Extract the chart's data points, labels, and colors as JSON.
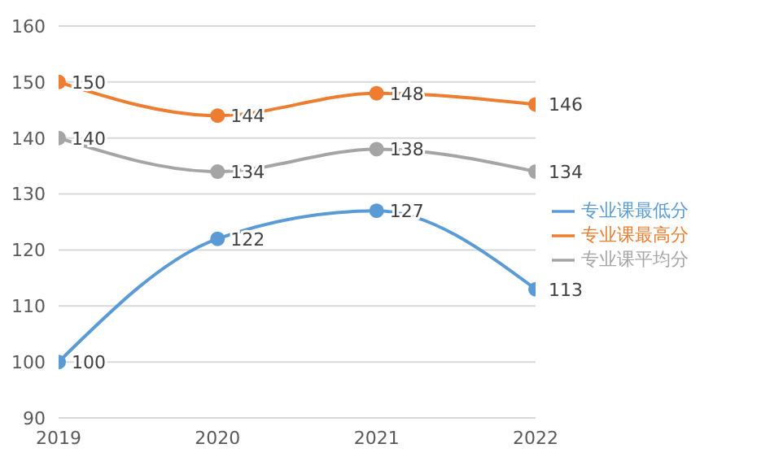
{
  "chart_data": {
    "type": "line",
    "categories": [
      "2019",
      "2020",
      "2021",
      "2022"
    ],
    "series": [
      {
        "name": "专业课最低分",
        "color": "#5b9bd5",
        "values": [
          100,
          122,
          127,
          113
        ]
      },
      {
        "name": "专业课最高分",
        "color": "#ed7d31",
        "values": [
          150,
          144,
          148,
          146
        ]
      },
      {
        "name": "专业课平均分",
        "color": "#a5a5a5",
        "values": [
          140,
          134,
          138,
          134
        ]
      }
    ],
    "ylim": [
      90,
      160
    ],
    "yticks": [
      90,
      100,
      110,
      120,
      130,
      140,
      150,
      160
    ],
    "grid": "y",
    "legend": "right",
    "marker": "circle",
    "line_style": "solid",
    "data_labels": true
  }
}
